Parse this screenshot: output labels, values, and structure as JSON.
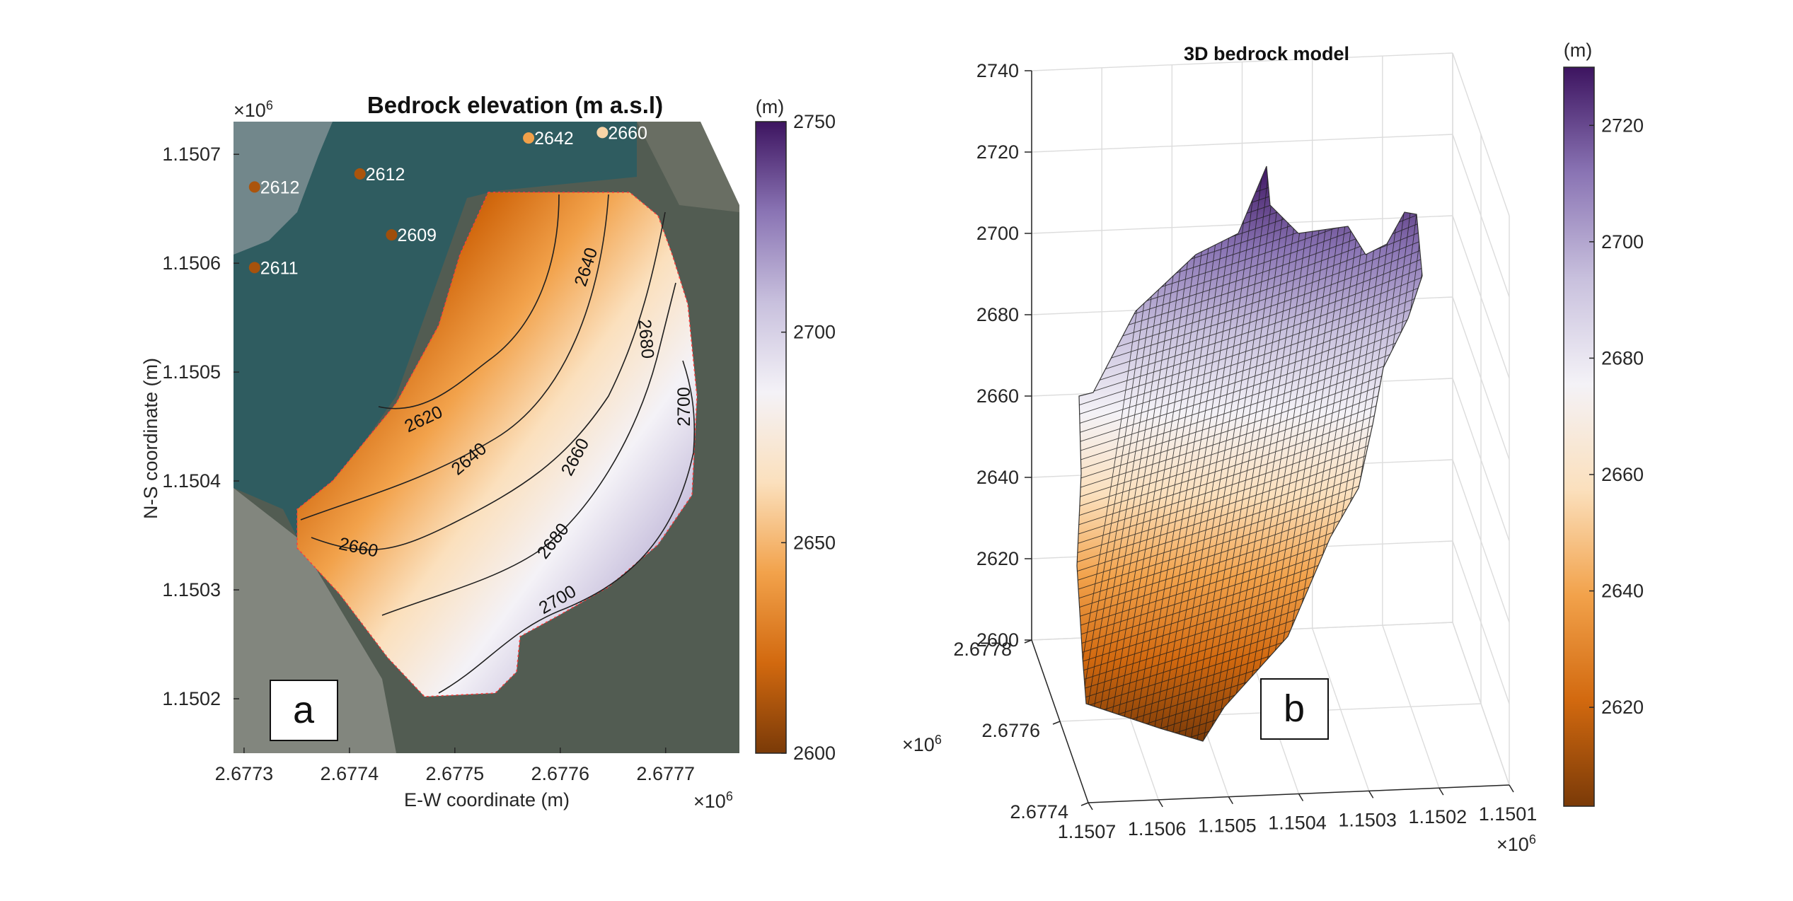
{
  "chart_data": [
    {
      "type": "heatmap",
      "title": "Bedrock elevation (m a.s.l)",
      "xlabel": "E-W coordinate (m)",
      "ylabel": "N-S coordinate (m)",
      "x_exponent": "×10",
      "x_exponent_power": "6",
      "y_exponent": "×10",
      "y_exponent_power": "6",
      "xlim": [
        2.67729,
        2.67777
      ],
      "ylim": [
        1.15015,
        1.15073
      ],
      "x_ticks": [
        "2.6773",
        "2.6774",
        "2.6775",
        "2.6776",
        "2.6777"
      ],
      "x_tick_values": [
        2.6773,
        2.6774,
        2.6775,
        2.6776,
        2.6777
      ],
      "y_ticks": [
        "1.1507",
        "1.1506",
        "1.1505",
        "1.1504",
        "1.1503",
        "1.1502"
      ],
      "y_tick_values": [
        1.1507,
        1.1506,
        1.1505,
        1.1504,
        1.1503,
        1.1502
      ],
      "panel_label": "a",
      "colorbar": {
        "unit_label": "(m)",
        "min": 2600,
        "max": 2750,
        "ticks": [
          "2600",
          "2650",
          "2700",
          "2750"
        ],
        "tick_values": [
          2600,
          2650,
          2700,
          2750
        ],
        "colormap": [
          "#7a3a08",
          "#d2690f",
          "#f2a24b",
          "#fbe0bd",
          "#f4f2f7",
          "#c8c0dd",
          "#8a74b4",
          "#3d1460"
        ]
      },
      "contour_labels": [
        {
          "text": "2620",
          "value": 2620
        },
        {
          "text": "2640",
          "value": 2640
        },
        {
          "text": "2640",
          "value": 2640
        },
        {
          "text": "2660",
          "value": 2660
        },
        {
          "text": "2660",
          "value": 2660
        },
        {
          "text": "2680",
          "value": 2680
        },
        {
          "text": "2680",
          "value": 2680
        },
        {
          "text": "2700",
          "value": 2700
        },
        {
          "text": "2700",
          "value": 2700
        }
      ],
      "points": [
        {
          "label": "2612",
          "value": 2612,
          "x": 2.67731,
          "y": 1.15067
        },
        {
          "label": "2612",
          "value": 2612,
          "x": 2.67741,
          "y": 1.150682
        },
        {
          "label": "2609",
          "value": 2609,
          "x": 2.67744,
          "y": 1.150626
        },
        {
          "label": "2611",
          "value": 2611,
          "x": 2.67731,
          "y": 1.150596
        },
        {
          "label": "2642",
          "value": 2642,
          "x": 2.67757,
          "y": 1.150715
        },
        {
          "label": "2660",
          "value": 2660,
          "x": 2.67764,
          "y": 1.15072
        }
      ],
      "colors": {
        "water": "#2f5c60",
        "rock": "#4f5a50",
        "boundary": "#ff2a2a"
      }
    },
    {
      "type": "surface",
      "title": "3D bedrock model",
      "panel_label": "b",
      "z_ticks": [
        "2600",
        "2620",
        "2640",
        "2660",
        "2680",
        "2700",
        "2720",
        "2740"
      ],
      "z_tick_values": [
        2600,
        2620,
        2640,
        2660,
        2680,
        2700,
        2720,
        2740
      ],
      "zlim": [
        2600,
        2740
      ],
      "x_ticks": [
        "1.1507",
        "1.1506",
        "1.1505",
        "1.1504",
        "1.1503",
        "1.1502",
        "1.1501"
      ],
      "x_tick_values": [
        1.1507,
        1.1506,
        1.1505,
        1.1504,
        1.1503,
        1.1502,
        1.1501
      ],
      "x_exponent": "×10",
      "x_exponent_power": "6",
      "y_ticks": [
        "2.6778",
        "2.6776",
        "2.6774"
      ],
      "y_tick_values": [
        2.6778,
        2.6776,
        2.6774
      ],
      "y_exponent": "×10",
      "y_exponent_power": "6",
      "grid": true,
      "colorbar": {
        "unit_label": "(m)",
        "min": 2603,
        "max": 2730,
        "ticks": [
          "2620",
          "2640",
          "2660",
          "2680",
          "2700",
          "2720"
        ],
        "tick_values": [
          2620,
          2640,
          2660,
          2680,
          2700,
          2720
        ],
        "colormap": [
          "#7a3a08",
          "#d2690f",
          "#f2a24b",
          "#fbe0bd",
          "#f4f2f7",
          "#c8c0dd",
          "#8a74b4",
          "#3d1460"
        ]
      }
    }
  ]
}
